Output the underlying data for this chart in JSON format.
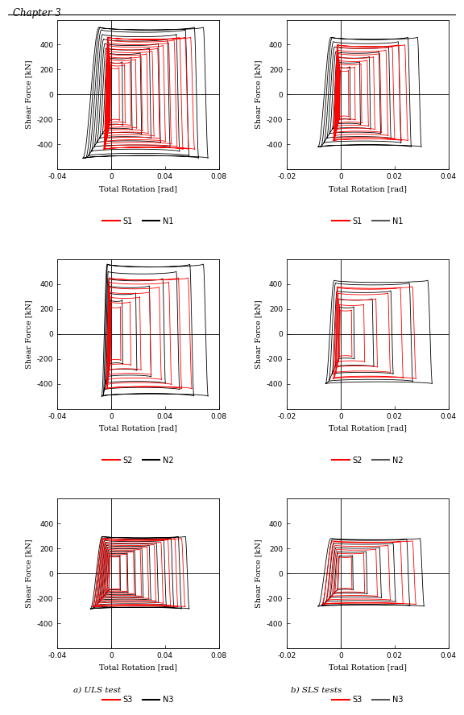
{
  "title_text": "Chapter 3",
  "ULS_xlim": [
    -0.04,
    0.08
  ],
  "ULS_xticks": [
    -0.04,
    0,
    0.04,
    0.08
  ],
  "SLS_xlim": [
    -0.02,
    0.04
  ],
  "SLS_xticks": [
    -0.02,
    0,
    0.02,
    0.04
  ],
  "ylim": [
    -600,
    600
  ],
  "yticks": [
    -400,
    -200,
    0,
    200,
    400
  ],
  "ylabel": "Shear Force [kN]",
  "xlabel": "Total Rotation [rad]",
  "red_color": "#FF0000",
  "black_color": "#000000",
  "gray_color": "#555555",
  "background": "#FFFFFF",
  "row_labels": [
    [
      "S1",
      "N1"
    ],
    [
      "S2",
      "N2"
    ],
    [
      "S3",
      "N3"
    ]
  ]
}
